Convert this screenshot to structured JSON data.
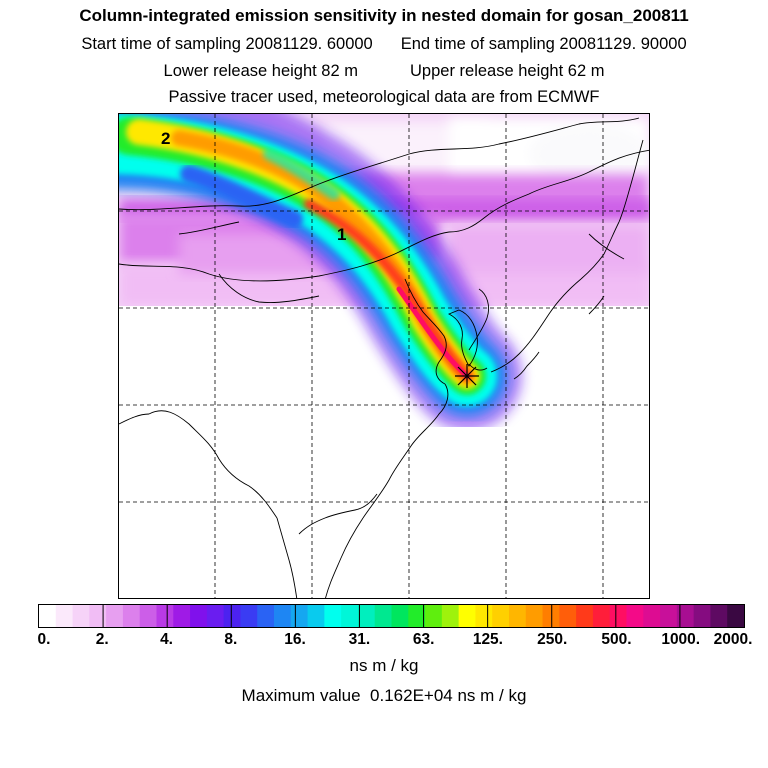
{
  "header": {
    "title": "Column-integrated emission sensitivity in nested domain for gosan_200811",
    "start_label": "Start time of sampling 20081129. 60000",
    "end_label": "End time of sampling 20081129. 90000",
    "lower_label": "Lower release height   82 m",
    "upper_label": "Upper release height   62 m",
    "tracer_label": "Passive tracer used, meteorological data are from ECMWF"
  },
  "map": {
    "plume_labels": [
      "1",
      "2"
    ],
    "release_marker": "star-icon",
    "gridlines": "dashed"
  },
  "colorbar": {
    "tick_labels": [
      "0.",
      "2.",
      "4.",
      "8.",
      "16.",
      "31.",
      "63.",
      "125.",
      "250.",
      "500.",
      "1000.",
      "2000."
    ],
    "units": "ns m / kg",
    "colors": [
      "#ffffff",
      "#fbe9fb",
      "#f6d3f8",
      "#f1bdf5",
      "#e79ff0",
      "#dc80ec",
      "#cc5ee8",
      "#b93ae6",
      "#9f1be6",
      "#8011ec",
      "#6a1df0",
      "#4c22f0",
      "#3a3cf3",
      "#2a63f4",
      "#1e86f3",
      "#15a7f0",
      "#09cbee",
      "#00ffee",
      "#00f6d8",
      "#00efbe",
      "#00e890",
      "#00e65e",
      "#22ec2a",
      "#5fee0e",
      "#9ef20c",
      "#ffff00",
      "#ffe800",
      "#ffd000",
      "#ffb600",
      "#ff9c00",
      "#ff7e00",
      "#ff5e0a",
      "#ff3a1a",
      "#ff1e3a",
      "#ff0e62",
      "#f40a88",
      "#dd0c92",
      "#c8109a",
      "#a80e92",
      "#850c80",
      "#5e0a62",
      "#3a0842"
    ]
  },
  "maximum_label": "Maximum value  0.162E+04 ns m / kg"
}
